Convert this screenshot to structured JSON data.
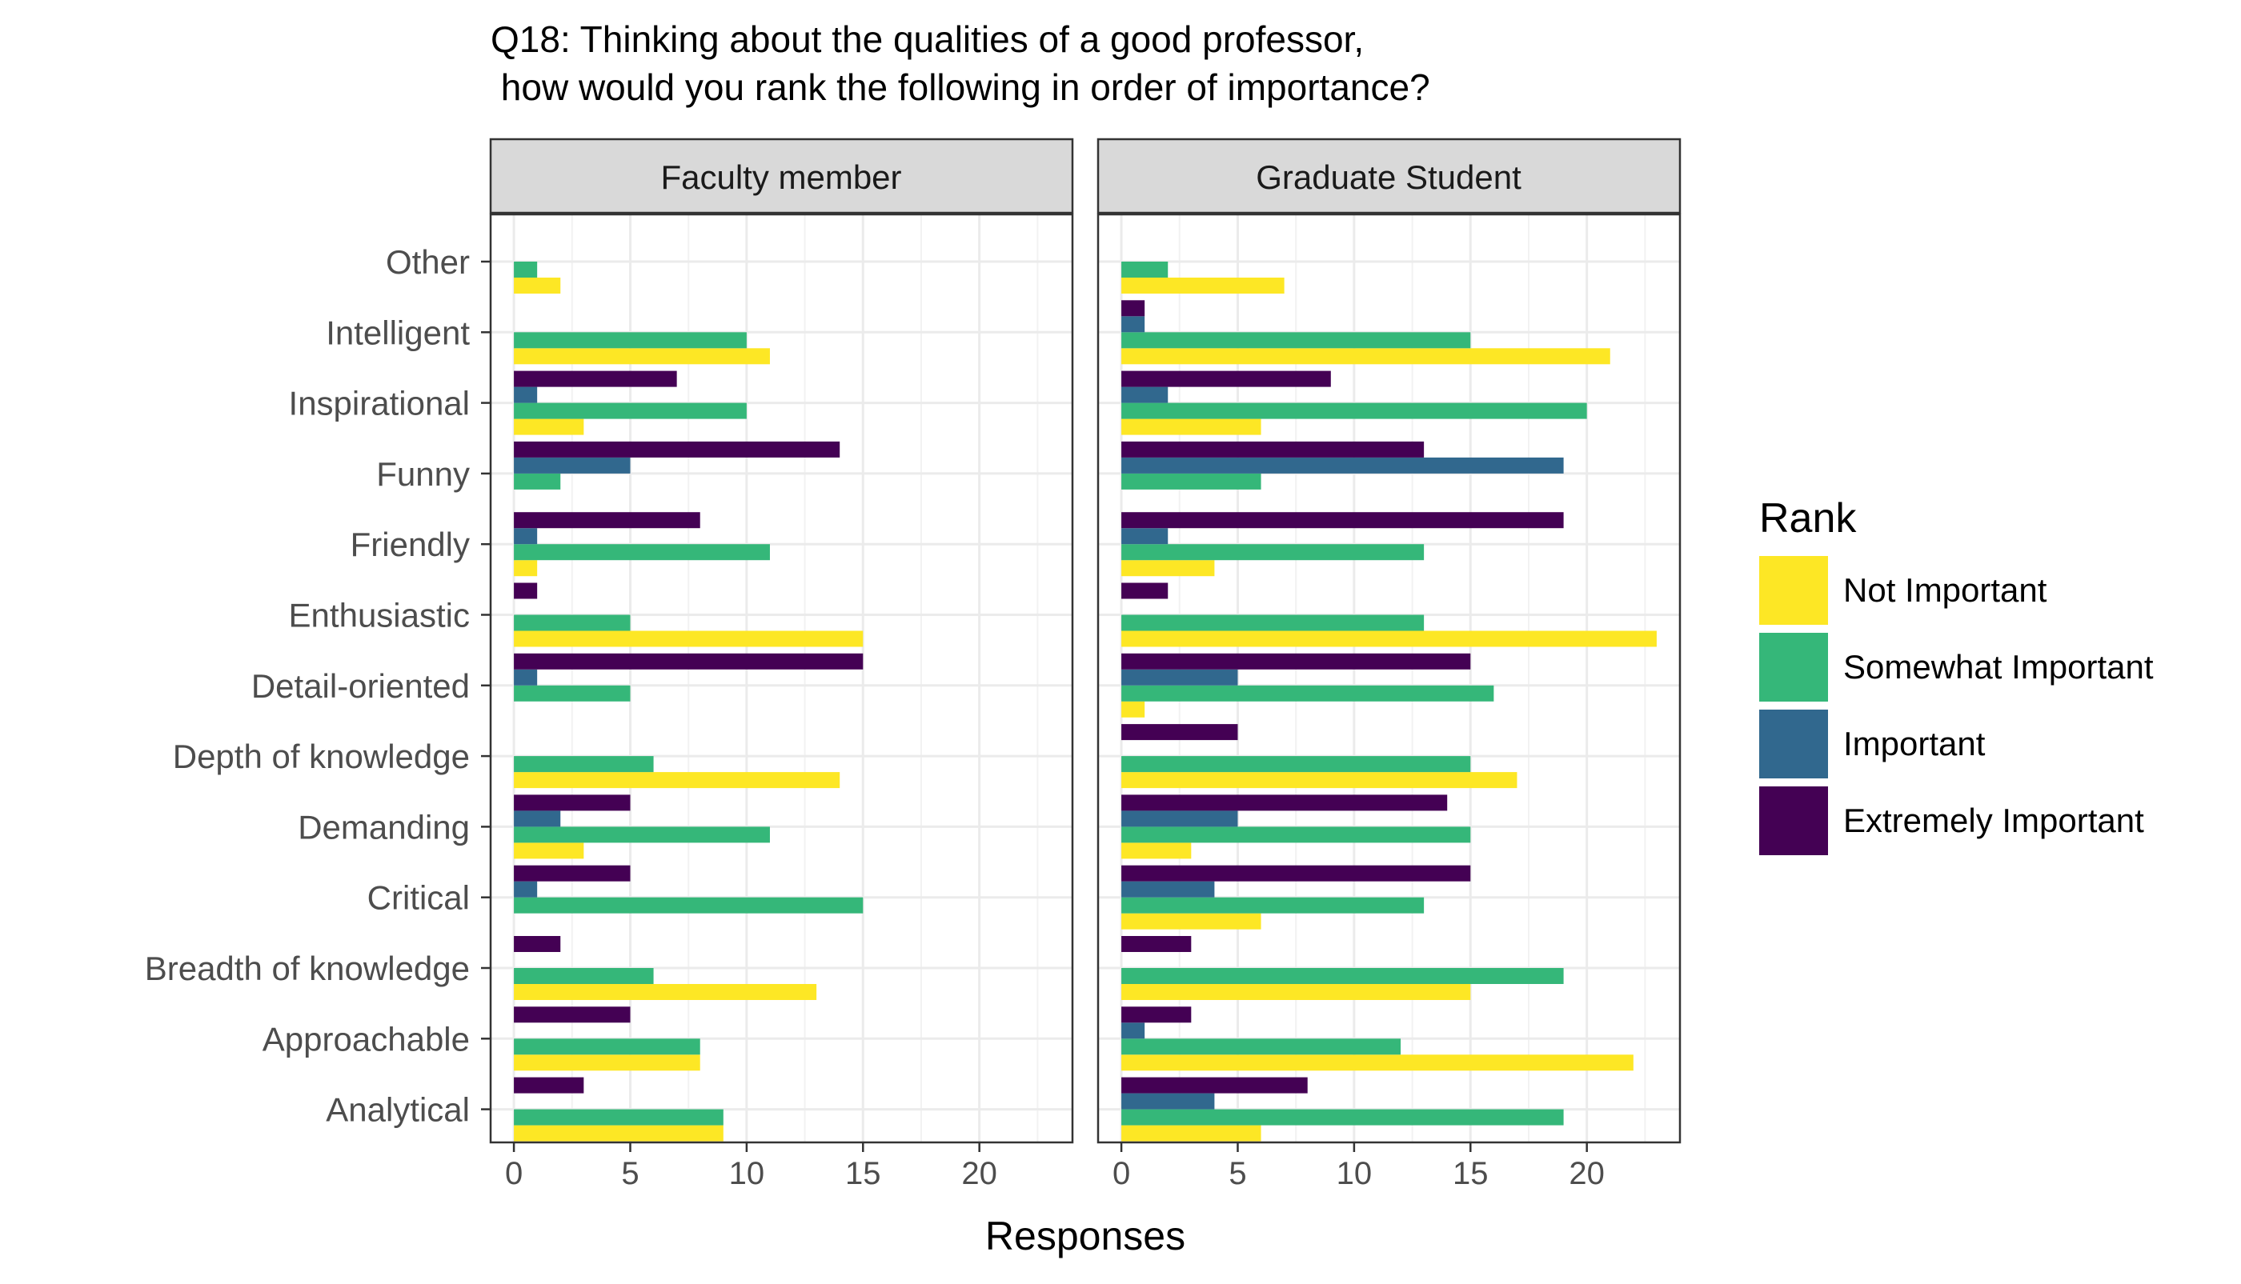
{
  "chart_data": {
    "type": "bar",
    "orientation": "horizontal",
    "title_lines": [
      "Q18: Thinking about the qualities of a good professor,",
      " how would you rank the following in order of importance?"
    ],
    "xlabel": "Responses",
    "ylabel": "",
    "xlim": [
      -1,
      24
    ],
    "x_ticks": [
      0,
      5,
      10,
      15,
      20
    ],
    "grid": true,
    "legend": {
      "title": "Rank",
      "position": "right",
      "entries": [
        {
          "label": "Not Important",
          "color": "#FDE725"
        },
        {
          "label": "Somewhat Important",
          "color": "#35B779"
        },
        {
          "label": "Important",
          "color": "#31688E"
        },
        {
          "label": "Extremely Important",
          "color": "#440154"
        }
      ]
    },
    "categories": [
      "Other",
      "Intelligent",
      "Inspirational",
      "Funny",
      "Friendly",
      "Enthusiastic",
      "Detail-oriented",
      "Depth of knowledge",
      "Demanding",
      "Critical",
      "Breadth of knowledge",
      "Approachable",
      "Analytical"
    ],
    "panels": [
      {
        "name": "Faculty member",
        "series": [
          {
            "name": "Not Important",
            "values": [
              2,
              11,
              3,
              0,
              1,
              15,
              0,
              14,
              3,
              0,
              13,
              8,
              9
            ]
          },
          {
            "name": "Somewhat Important",
            "values": [
              1,
              10,
              10,
              2,
              11,
              5,
              5,
              6,
              11,
              15,
              6,
              8,
              9
            ]
          },
          {
            "name": "Important",
            "values": [
              0,
              0,
              1,
              5,
              1,
              0,
              1,
              0,
              2,
              1,
              0,
              0,
              0
            ]
          },
          {
            "name": "Extremely Important",
            "values": [
              0,
              0,
              7,
              14,
              8,
              1,
              15,
              0,
              5,
              5,
              2,
              5,
              3
            ]
          }
        ]
      },
      {
        "name": "Graduate Student",
        "series": [
          {
            "name": "Not Important",
            "values": [
              7,
              21,
              6,
              0,
              4,
              23,
              1,
              17,
              3,
              6,
              15,
              22,
              6
            ]
          },
          {
            "name": "Somewhat Important",
            "values": [
              2,
              15,
              20,
              6,
              13,
              13,
              16,
              15,
              15,
              13,
              19,
              12,
              19
            ]
          },
          {
            "name": "Important",
            "values": [
              0,
              1,
              2,
              19,
              2,
              0,
              5,
              0,
              5,
              4,
              0,
              1,
              4
            ]
          },
          {
            "name": "Extremely Important",
            "values": [
              0,
              1,
              9,
              13,
              19,
              2,
              15,
              5,
              14,
              15,
              3,
              3,
              8
            ]
          }
        ]
      }
    ]
  }
}
